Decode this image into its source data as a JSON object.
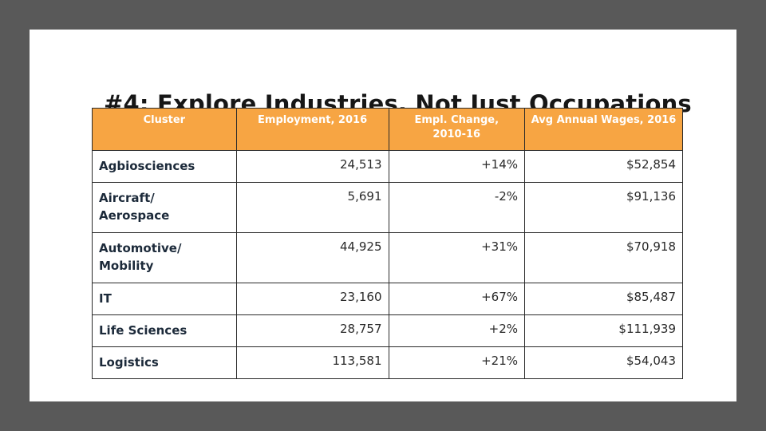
{
  "title": "#4: Explore Industries, Not Just Occupations",
  "headers": {
    "cluster": "Cluster",
    "employment": "Employment, 2016",
    "change_line1": "Empl. Change,",
    "change_line2": "2010-16",
    "wages": "Avg Annual Wages, 2016"
  },
  "rows": [
    {
      "cluster_l1": "Agbiosciences",
      "cluster_l2": "",
      "employment": "24,513",
      "change": "+14%",
      "wages": "$52,854"
    },
    {
      "cluster_l1": "Aircraft/",
      "cluster_l2": "Aerospace",
      "employment": "5,691",
      "change": "-2%",
      "wages": "$91,136"
    },
    {
      "cluster_l1": "Automotive/",
      "cluster_l2": "Mobility",
      "employment": "44,925",
      "change": "+31%",
      "wages": "$70,918"
    },
    {
      "cluster_l1": "IT",
      "cluster_l2": "",
      "employment": "23,160",
      "change": "+67%",
      "wages": "$85,487"
    },
    {
      "cluster_l1": "Life Sciences",
      "cluster_l2": "",
      "employment": "28,757",
      "change": "+2%",
      "wages": "$111,939"
    },
    {
      "cluster_l1": "Logistics",
      "cluster_l2": "",
      "employment": "113,581",
      "change": "+21%",
      "wages": "$54,043"
    }
  ],
  "colors": {
    "header_bg": "#f7a543",
    "frame_bg": "#595959"
  }
}
